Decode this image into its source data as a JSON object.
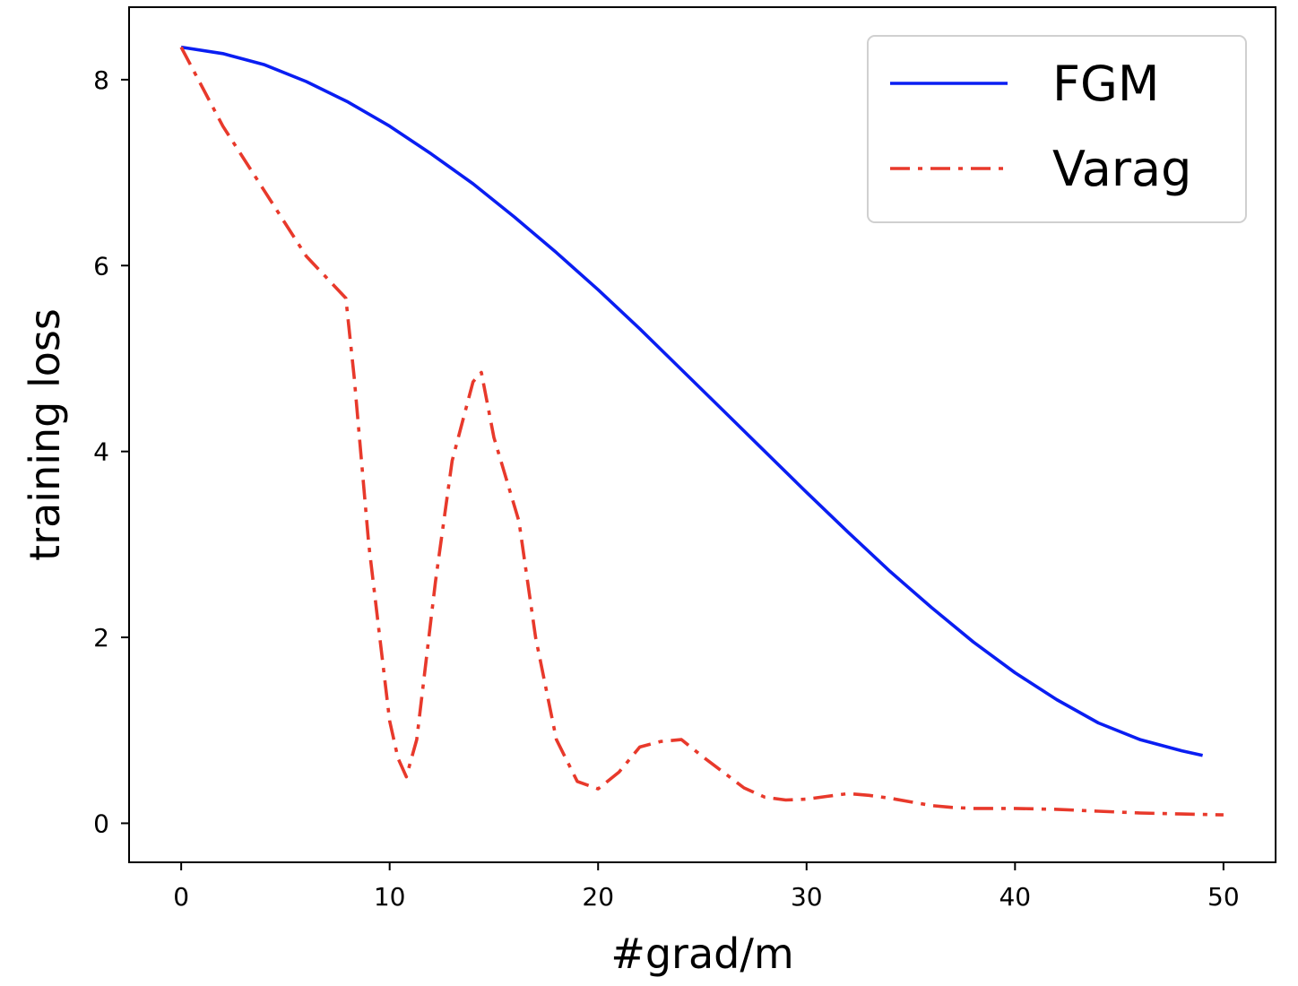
{
  "chart_data": {
    "type": "line",
    "title": "",
    "xlabel": "#grad/m",
    "ylabel": "training loss",
    "xlim": [
      -2.5,
      52.5
    ],
    "ylim": [
      -0.42,
      8.78
    ],
    "xticks": [
      0,
      10,
      20,
      30,
      40,
      50
    ],
    "yticks": [
      0,
      2,
      4,
      6,
      8
    ],
    "grid": false,
    "legend_position": "top-right",
    "series": [
      {
        "name": "FGM",
        "color": "#0a1ef2",
        "linestyle": "solid",
        "x": [
          0,
          2,
          4,
          6,
          8,
          10,
          12,
          14,
          16,
          18,
          20,
          22,
          24,
          26,
          28,
          30,
          32,
          34,
          36,
          38,
          40,
          42,
          44,
          46,
          48,
          49
        ],
        "y": [
          8.35,
          8.28,
          8.16,
          7.98,
          7.76,
          7.5,
          7.2,
          6.88,
          6.52,
          6.14,
          5.74,
          5.32,
          4.88,
          4.44,
          4.0,
          3.56,
          3.13,
          2.71,
          2.32,
          1.95,
          1.62,
          1.33,
          1.08,
          0.9,
          0.78,
          0.73
        ]
      },
      {
        "name": "Varag",
        "color": "#e8392b",
        "linestyle": "dashdot",
        "x": [
          0,
          2,
          4,
          6,
          7.9,
          8.3,
          9,
          10,
          10.4,
          10.8,
          11.3,
          12.2,
          13,
          14,
          14.4,
          15,
          16.2,
          17,
          18,
          19,
          20,
          21,
          22,
          23,
          24,
          25,
          26,
          27,
          28,
          29,
          30,
          31,
          32,
          33,
          34,
          35,
          36,
          37,
          38,
          40,
          42,
          44,
          46,
          48,
          50
        ],
        "y": [
          8.35,
          7.5,
          6.8,
          6.1,
          5.65,
          4.8,
          3.0,
          1.1,
          0.7,
          0.5,
          0.9,
          2.6,
          3.9,
          4.75,
          4.85,
          4.15,
          3.25,
          2.0,
          0.9,
          0.45,
          0.37,
          0.55,
          0.82,
          0.88,
          0.9,
          0.72,
          0.55,
          0.38,
          0.28,
          0.25,
          0.26,
          0.29,
          0.32,
          0.3,
          0.27,
          0.23,
          0.19,
          0.17,
          0.16,
          0.16,
          0.15,
          0.13,
          0.11,
          0.1,
          0.09
        ]
      }
    ]
  }
}
